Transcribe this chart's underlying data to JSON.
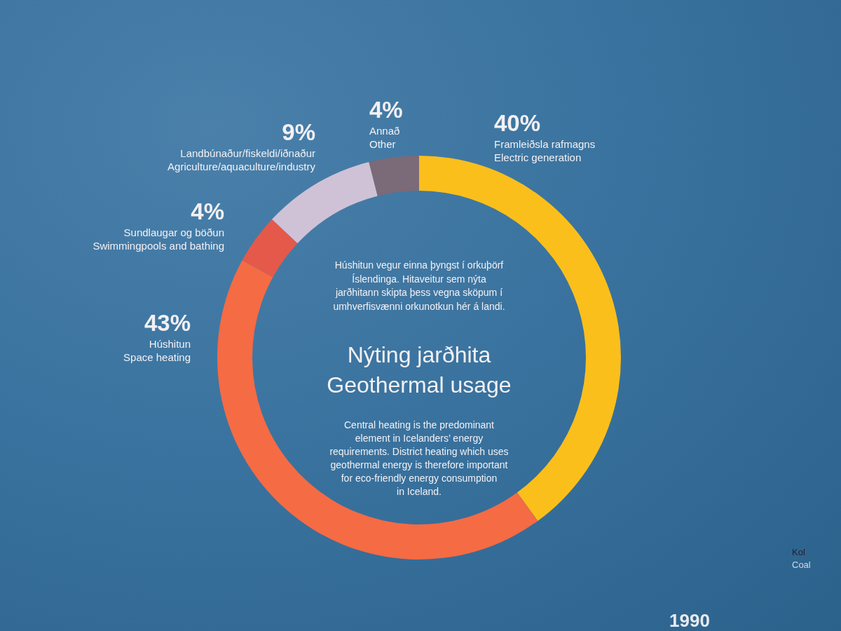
{
  "chart_data": {
    "type": "donut",
    "title": "Nýting jarðhita",
    "subtitle": "Geothermal usage",
    "categories": [
      "Framleiðsla rafmagns\nElectric generation",
      "Húshitun\nSpace heating",
      "Sundlaugar og böðun\nSwimmingpools and bathing",
      "Landbúnaður/fiskeldi/iðnaður\nAgriculture/aquaculture/industry",
      "Annað\nOther"
    ],
    "values": [
      40,
      43,
      4,
      9,
      4
    ],
    "value_labels": [
      "40%",
      "43%",
      "4%",
      "9%",
      "4%"
    ],
    "colors": [
      "#fbbf1c",
      "#f56b44",
      "#e5594a",
      "#cfc2d7",
      "#7b6a78"
    ],
    "annotations": [
      "Húshitun vegur einna þyngst í orkuþörf\nÍslendinga. Hitaveitur sem nýta\njarðhitann skipta þess vegna sköpum í\numhverfisvænni orkunotkun hér á landi.",
      "Central heating is the predominant\nelement in Icelanders’ energy\nrequirements. District heating which uses\ngeothermal energy is therefore important\nfor eco-friendly energy consumption\nin Iceland.",
      "Kol",
      "Coal",
      "1990"
    ]
  }
}
